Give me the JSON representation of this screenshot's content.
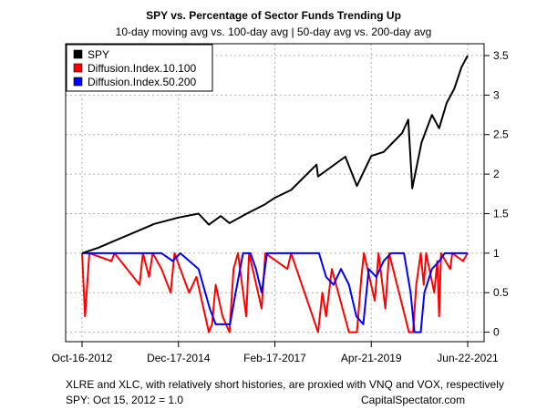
{
  "chart_data": {
    "type": "line",
    "title": "SPY vs. Percentage of Sector Funds Trending Up",
    "subtitle": "10-day moving avg vs. 100-day avg | 50-day avg vs. 200-day avg",
    "xlabel": "",
    "ylabel": "",
    "x_tick_labels": [
      "Oct-16-2012",
      "Dec-17-2014",
      "Feb-17-2017",
      "Apr-21-2019",
      "Jun-22-2021"
    ],
    "x_range": [
      "2012-10-16",
      "2021-06-22"
    ],
    "y_ticks": [
      0,
      0.5,
      1,
      1.5,
      2,
      2.5,
      3,
      3.5
    ],
    "y_tick_labels": [
      "0",
      "0.5",
      "1",
      "1.5",
      "2",
      "2.5",
      "3",
      "3.5"
    ],
    "ylim": [
      -0.12,
      3.65
    ],
    "y_axis_side": "right",
    "grid": true,
    "legend": {
      "position": "top-left"
    },
    "series": [
      {
        "name": "SPY",
        "color": "#000000",
        "points": [
          [
            "2012-10-16",
            1.0
          ],
          [
            "2013-03-01",
            1.07
          ],
          [
            "2013-07-01",
            1.15
          ],
          [
            "2013-12-01",
            1.25
          ],
          [
            "2014-06-01",
            1.37
          ],
          [
            "2014-12-17",
            1.45
          ],
          [
            "2015-06-01",
            1.5
          ],
          [
            "2015-08-25",
            1.36
          ],
          [
            "2015-12-01",
            1.47
          ],
          [
            "2016-02-10",
            1.38
          ],
          [
            "2016-07-01",
            1.5
          ],
          [
            "2016-12-01",
            1.62
          ],
          [
            "2017-02-17",
            1.7
          ],
          [
            "2017-07-01",
            1.8
          ],
          [
            "2018-01-26",
            2.12
          ],
          [
            "2018-02-08",
            1.97
          ],
          [
            "2018-09-20",
            2.22
          ],
          [
            "2018-12-24",
            1.85
          ],
          [
            "2019-04-21",
            2.23
          ],
          [
            "2019-08-01",
            2.28
          ],
          [
            "2019-12-31",
            2.52
          ],
          [
            "2020-02-19",
            2.69
          ],
          [
            "2020-03-23",
            1.82
          ],
          [
            "2020-06-08",
            2.4
          ],
          [
            "2020-09-01",
            2.75
          ],
          [
            "2020-10-30",
            2.58
          ],
          [
            "2020-12-31",
            2.9
          ],
          [
            "2021-03-04",
            3.08
          ],
          [
            "2021-05-01",
            3.35
          ],
          [
            "2021-06-22",
            3.5
          ]
        ]
      },
      {
        "name": "Diffusion.Index.10.100",
        "color": "#ff0000",
        "points": [
          [
            "2012-10-16",
            1.0
          ],
          [
            "2012-11-10",
            0.2
          ],
          [
            "2012-12-15",
            1.0
          ],
          [
            "2013-06-15",
            0.9
          ],
          [
            "2013-07-10",
            1.0
          ],
          [
            "2014-02-01",
            0.6
          ],
          [
            "2014-03-01",
            1.0
          ],
          [
            "2014-04-20",
            0.7
          ],
          [
            "2014-05-20",
            1.0
          ],
          [
            "2014-08-01",
            0.8
          ],
          [
            "2014-10-15",
            0.5
          ],
          [
            "2014-11-15",
            1.0
          ],
          [
            "2015-03-15",
            0.5
          ],
          [
            "2015-05-15",
            0.7
          ],
          [
            "2015-08-25",
            0.0
          ],
          [
            "2015-09-20",
            0.1
          ],
          [
            "2015-10-20",
            0.6
          ],
          [
            "2015-12-15",
            0.2
          ],
          [
            "2016-02-10",
            0.0
          ],
          [
            "2016-03-15",
            0.8
          ],
          [
            "2016-04-20",
            1.0
          ],
          [
            "2016-06-27",
            0.2
          ],
          [
            "2016-07-20",
            1.0
          ],
          [
            "2016-11-01",
            0.3
          ],
          [
            "2016-12-01",
            1.0
          ],
          [
            "2017-06-01",
            0.8
          ],
          [
            "2017-07-01",
            1.0
          ],
          [
            "2018-02-08",
            0.0
          ],
          [
            "2018-03-15",
            0.5
          ],
          [
            "2018-04-15",
            0.2
          ],
          [
            "2018-06-01",
            0.8
          ],
          [
            "2018-10-20",
            0.0
          ],
          [
            "2018-12-24",
            0.0
          ],
          [
            "2019-01-30",
            0.7
          ],
          [
            "2019-02-20",
            1.0
          ],
          [
            "2019-05-20",
            0.4
          ],
          [
            "2019-06-20",
            1.0
          ],
          [
            "2019-08-15",
            0.3
          ],
          [
            "2019-09-15",
            1.0
          ],
          [
            "2020-02-25",
            0.0
          ],
          [
            "2020-03-30",
            0.0
          ],
          [
            "2020-04-25",
            0.6
          ],
          [
            "2020-06-01",
            1.0
          ],
          [
            "2020-06-26",
            0.6
          ],
          [
            "2020-07-15",
            1.0
          ],
          [
            "2020-09-20",
            0.5
          ],
          [
            "2020-10-15",
            0.9
          ],
          [
            "2020-10-30",
            0.2
          ],
          [
            "2020-11-15",
            1.0
          ],
          [
            "2021-01-29",
            0.8
          ],
          [
            "2021-02-15",
            1.0
          ],
          [
            "2021-05-15",
            0.9
          ],
          [
            "2021-06-22",
            1.0
          ]
        ]
      },
      {
        "name": "Diffusion.Index.50.200",
        "color": "#0000ff",
        "points": [
          [
            "2012-10-16",
            1.0
          ],
          [
            "2014-08-01",
            1.0
          ],
          [
            "2014-11-01",
            0.9
          ],
          [
            "2015-01-01",
            1.0
          ],
          [
            "2015-06-01",
            0.8
          ],
          [
            "2015-09-01",
            0.3
          ],
          [
            "2015-10-20",
            0.1
          ],
          [
            "2016-02-15",
            0.1
          ],
          [
            "2016-04-01",
            0.5
          ],
          [
            "2016-06-01",
            1.0
          ],
          [
            "2016-08-01",
            1.0
          ],
          [
            "2016-09-15",
            0.8
          ],
          [
            "2016-11-01",
            0.5
          ],
          [
            "2016-12-15",
            1.0
          ],
          [
            "2018-02-15",
            1.0
          ],
          [
            "2018-04-15",
            0.7
          ],
          [
            "2018-06-15",
            0.6
          ],
          [
            "2018-08-15",
            0.8
          ],
          [
            "2018-10-20",
            0.6
          ],
          [
            "2018-12-20",
            0.2
          ],
          [
            "2019-02-15",
            0.1
          ],
          [
            "2019-04-01",
            0.8
          ],
          [
            "2019-06-01",
            0.7
          ],
          [
            "2019-08-01",
            0.9
          ],
          [
            "2019-10-01",
            1.0
          ],
          [
            "2020-01-15",
            1.0
          ],
          [
            "2020-03-10",
            0.5
          ],
          [
            "2020-04-10",
            0.0
          ],
          [
            "2020-06-01",
            0.0
          ],
          [
            "2020-07-01",
            0.5
          ],
          [
            "2020-09-01",
            0.8
          ],
          [
            "2020-11-01",
            0.9
          ],
          [
            "2020-12-15",
            1.0
          ],
          [
            "2021-06-22",
            1.0
          ]
        ]
      }
    ]
  },
  "footer": {
    "note": "XLRE and XLC, with relatively short histories, are proxied with VNQ and VOX, respectively",
    "base": "SPY: Oct 15, 2012 = 1.0",
    "source": "CapitalSpectator.com"
  }
}
